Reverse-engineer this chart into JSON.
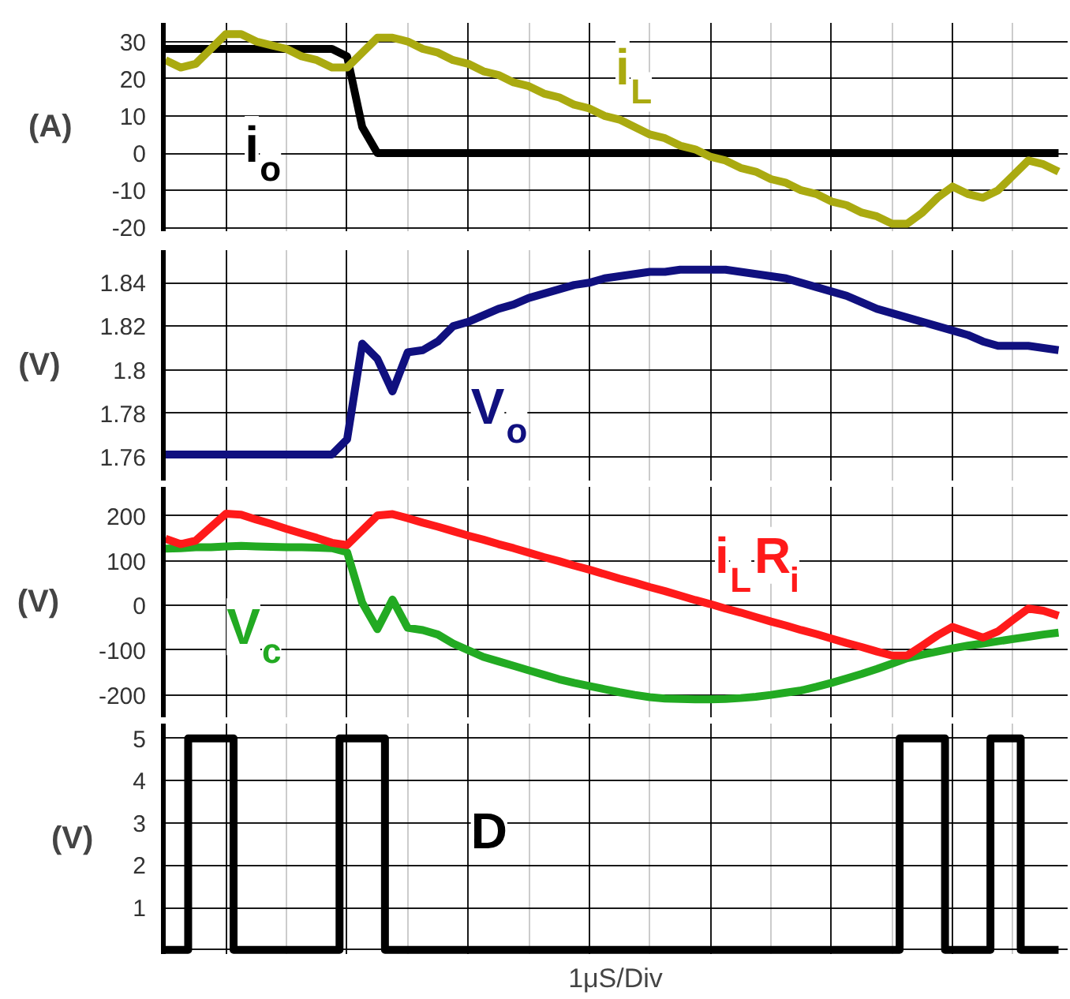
{
  "chart_data": [
    {
      "type": "line",
      "ylabel": "(A)",
      "ylim": [
        -21,
        35
      ],
      "yticks": [
        -20,
        -10,
        0,
        10,
        20,
        30
      ],
      "grid": true,
      "tick_labels": "y",
      "categories": [
        null,
        null,
        null,
        null,
        null,
        null,
        null,
        null,
        null,
        null,
        null,
        null,
        null,
        null,
        null,
        null,
        null,
        null,
        null,
        null,
        null,
        null,
        null,
        null,
        null,
        null,
        null,
        null,
        null,
        null,
        null,
        null,
        null,
        null,
        null,
        null,
        null,
        null,
        null,
        null,
        null,
        null,
        null,
        null,
        null,
        null,
        null,
        null,
        null,
        null,
        null,
        null,
        null,
        null,
        null,
        null,
        null,
        null,
        null,
        null
      ],
      "series": [
        {
          "name": "i$_{o}$",
          "color": "#000000",
          "values": [
            28,
            28,
            28,
            28,
            28,
            28,
            28,
            28,
            28,
            28,
            28,
            28,
            26,
            7,
            0,
            0,
            0,
            0,
            0,
            0,
            0,
            0,
            0,
            0,
            0,
            0,
            0,
            0,
            0,
            0,
            0,
            0,
            0,
            0,
            0,
            0,
            0,
            0,
            0,
            0,
            0,
            0,
            0,
            0,
            0,
            0,
            0,
            0,
            0,
            0,
            0,
            0,
            0,
            0,
            0,
            0,
            0,
            0,
            0,
            0
          ]
        },
        {
          "name": "i$_{L}$",
          "color": "#aaaa10",
          "values": [
            25,
            23,
            24,
            28,
            32,
            32,
            30,
            29,
            28,
            26,
            25,
            23,
            23,
            27,
            31,
            31,
            30,
            28,
            27,
            25,
            24,
            22,
            21,
            19,
            18,
            16,
            15,
            13,
            12,
            10,
            9,
            7,
            5,
            4,
            2,
            1,
            -1,
            -2,
            -4,
            -5,
            -7,
            -8,
            -10,
            -11,
            -13,
            -14,
            -16,
            -17,
            -19,
            -19,
            -16,
            -12,
            -9,
            -11,
            -12,
            -10,
            -6,
            -2,
            -3,
            -5
          ]
        }
      ]
    },
    {
      "type": "line",
      "ylabel": "(V)",
      "ylim": [
        1.749,
        1.855
      ],
      "yticks": [
        1.76,
        1.78,
        1.8,
        1.82,
        1.84
      ],
      "grid": true,
      "tick_labels": "y",
      "categories": [
        null,
        null,
        null,
        null,
        null,
        null,
        null,
        null,
        null,
        null,
        null,
        null,
        null,
        null,
        null,
        null,
        null,
        null,
        null,
        null,
        null,
        null,
        null,
        null,
        null,
        null,
        null,
        null,
        null,
        null,
        null,
        null,
        null,
        null,
        null,
        null,
        null,
        null,
        null,
        null,
        null,
        null,
        null,
        null,
        null,
        null,
        null,
        null,
        null,
        null,
        null,
        null,
        null,
        null,
        null,
        null,
        null,
        null,
        null,
        null
      ],
      "series": [
        {
          "name": "V$_{o}$",
          "color": "#10107f",
          "values": [
            1.761,
            1.761,
            1.761,
            1.761,
            1.761,
            1.761,
            1.761,
            1.761,
            1.761,
            1.761,
            1.761,
            1.761,
            1.768,
            1.812,
            1.805,
            1.79,
            1.808,
            1.809,
            1.813,
            1.82,
            1.822,
            1.825,
            1.828,
            1.83,
            1.833,
            1.835,
            1.837,
            1.839,
            1.84,
            1.842,
            1.843,
            1.844,
            1.845,
            1.845,
            1.846,
            1.846,
            1.846,
            1.846,
            1.845,
            1.844,
            1.843,
            1.842,
            1.84,
            1.838,
            1.836,
            1.834,
            1.831,
            1.828,
            1.826,
            1.824,
            1.822,
            1.82,
            1.818,
            1.816,
            1.813,
            1.811,
            1.811,
            1.811,
            1.81,
            1.809
          ]
        }
      ]
    },
    {
      "type": "line",
      "ylabel": "(V)",
      "ylim": [
        -250,
        265
      ],
      "yticks": [
        -200,
        -100,
        0,
        100,
        200
      ],
      "grid": true,
      "tick_labels": "y",
      "categories": [
        null,
        null,
        null,
        null,
        null,
        null,
        null,
        null,
        null,
        null,
        null,
        null,
        null,
        null,
        null,
        null,
        null,
        null,
        null,
        null,
        null,
        null,
        null,
        null,
        null,
        null,
        null,
        null,
        null,
        null,
        null,
        null,
        null,
        null,
        null,
        null,
        null,
        null,
        null,
        null,
        null,
        null,
        null,
        null,
        null,
        null,
        null,
        null,
        null,
        null,
        null,
        null,
        null,
        null,
        null,
        null,
        null,
        null,
        null,
        null
      ],
      "series": [
        {
          "name": "V$_{c}$",
          "color": "#22aa22",
          "values": [
            127,
            128,
            130,
            130,
            132,
            133,
            132,
            131,
            130,
            130,
            129,
            128,
            119,
            6,
            -53,
            13,
            -50,
            -55,
            -65,
            -85,
            -100,
            -115,
            -125,
            -135,
            -145,
            -155,
            -165,
            -173,
            -180,
            -187,
            -194,
            -200,
            -205,
            -208,
            -209,
            -210,
            -210,
            -209,
            -207,
            -204,
            -200,
            -195,
            -190,
            -182,
            -173,
            -163,
            -153,
            -142,
            -130,
            -118,
            -110,
            -103,
            -96,
            -90,
            -85,
            -80,
            -75,
            -70,
            -65,
            -61
          ]
        },
        {
          "name": "i$_{L}$R$_{i}$",
          "color": "#ff1a1a",
          "values": [
            149,
            137,
            145,
            175,
            205,
            203,
            192,
            182,
            171,
            161,
            151,
            140,
            135,
            168,
            201,
            204,
            195,
            185,
            176,
            166,
            156,
            147,
            137,
            128,
            118,
            108,
            99,
            89,
            80,
            70,
            60,
            51,
            41,
            32,
            22,
            12,
            3,
            -7,
            -16,
            -26,
            -36,
            -45,
            -55,
            -64,
            -74,
            -84,
            -93,
            -103,
            -112,
            -112,
            -90,
            -67,
            -48,
            -60,
            -72,
            -58,
            -32,
            -7,
            -12,
            -23
          ]
        }
      ]
    },
    {
      "type": "step",
      "ylabel": "(V)",
      "xlabel": "1μS/Div",
      "ylim": [
        -0.1,
        5.35
      ],
      "yticks": [
        {
          "value": 0,
          "label": null
        },
        1,
        2,
        3,
        4,
        5
      ],
      "grid": true,
      "tick_labels": "y",
      "categories": [
        null,
        null,
        null,
        null,
        null,
        null,
        null,
        null,
        null,
        null,
        null,
        null,
        null,
        null,
        null,
        null,
        null,
        null,
        null,
        null,
        null,
        null,
        null,
        null,
        null,
        null,
        null,
        null,
        null,
        null,
        null,
        null,
        null,
        null,
        null,
        null,
        null,
        null,
        null,
        null,
        null,
        null,
        null,
        null,
        null,
        null,
        null,
        null,
        null,
        null,
        null,
        null,
        null,
        null,
        null,
        null,
        null,
        null,
        null,
        null
      ],
      "series": [
        {
          "name": "D",
          "color": "#000000",
          "values": [
            0,
            0,
            5,
            5,
            5,
            0,
            0,
            0,
            0,
            0,
            0,
            0,
            5,
            5,
            5,
            0,
            0,
            0,
            0,
            0,
            0,
            0,
            0,
            0,
            0,
            0,
            0,
            0,
            0,
            0,
            0,
            0,
            0,
            0,
            0,
            0,
            0,
            0,
            0,
            0,
            0,
            0,
            0,
            0,
            0,
            0,
            0,
            0,
            0,
            5,
            5,
            5,
            0,
            0,
            0,
            5,
            5,
            0,
            0,
            0
          ]
        }
      ]
    }
  ]
}
